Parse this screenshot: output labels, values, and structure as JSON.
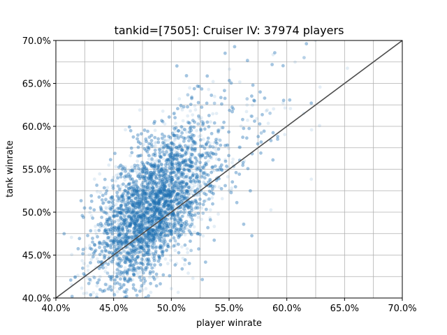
{
  "chart_data": {
    "type": "scatter",
    "title": "tankid=[7505]: Cruiser IV: 37974 players",
    "xlabel": "player winrate",
    "ylabel": "tank winrate",
    "xlim": [
      0.4,
      0.7
    ],
    "ylim": [
      0.4,
      0.7
    ],
    "x_ticks": [
      0.4,
      0.45,
      0.5,
      0.55,
      0.6,
      0.65,
      0.7
    ],
    "x_tick_labels": [
      "40.0%",
      "45.0%",
      "50.0%",
      "55.0%",
      "60.0%",
      "65.0%",
      "70.0%"
    ],
    "y_ticks": [
      0.4,
      0.45,
      0.5,
      0.55,
      0.6,
      0.65,
      0.7
    ],
    "y_tick_labels": [
      "40.0%",
      "45.0%",
      "50.0%",
      "55.0%",
      "60.0%",
      "65.0%",
      "70.0%"
    ],
    "minor_grid_step": 0.025,
    "grid": true,
    "point_color": "#1f77b4",
    "point_alpha": 0.12,
    "reference_line": {
      "x": [
        0.4,
        0.7
      ],
      "y": [
        0.4,
        0.7
      ],
      "color": "#4d4d4d"
    },
    "point_cloud": {
      "count": 37974,
      "center": [
        0.483,
        0.505
      ],
      "x_std": 0.025,
      "y_std": 0.045,
      "correlation": 0.55
    }
  }
}
